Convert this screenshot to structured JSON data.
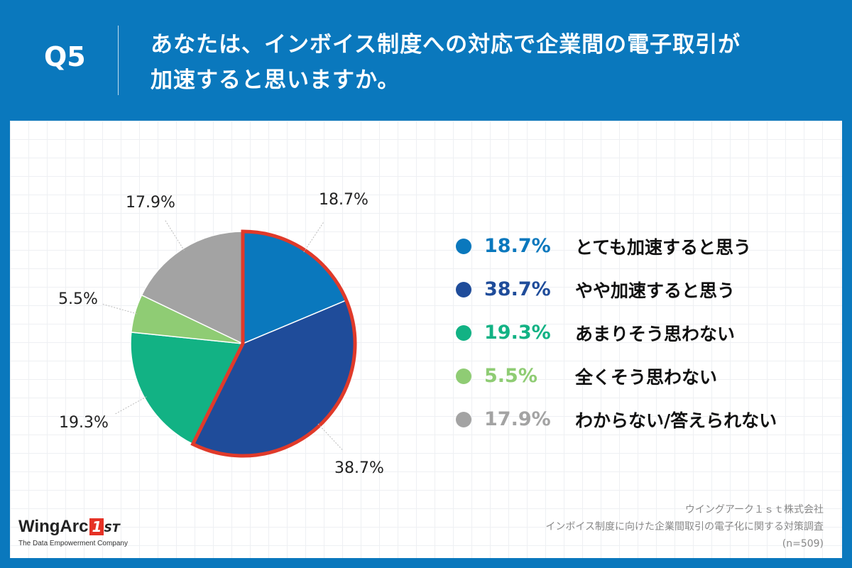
{
  "header": {
    "question_number": "Q5",
    "question_line1": "あなたは、インボイス制度への対応で企業間の電子取引が",
    "question_line2": "加速すると思いますか。"
  },
  "colors": {
    "header_bg": "#0a78bd",
    "highlight_border": "#e03a2a"
  },
  "chart_data": {
    "type": "pie",
    "title": "あなたは、インボイス制度への対応で企業間の電子取引が加速すると思いますか。",
    "start_angle": "12 o'clock",
    "direction": "clockwise",
    "highlighted_group": [
      "とても加速すると思う",
      "やや加速すると思う"
    ],
    "slices": [
      {
        "label": "とても加速すると思う",
        "value": 18.7,
        "display": "18.7%",
        "color": "#0a78bd"
      },
      {
        "label": "やや加速すると思う",
        "value": 38.7,
        "display": "38.7%",
        "color": "#1f4c9a"
      },
      {
        "label": "あまりそう思わない",
        "value": 19.3,
        "display": "19.3%",
        "color": "#12b284"
      },
      {
        "label": "全くそう思わない",
        "value": 5.5,
        "display": "5.5%",
        "color": "#8fcc74"
      },
      {
        "label": "わからない/答えられない",
        "value": 17.9,
        "display": "17.9%",
        "color": "#a3a3a3"
      }
    ]
  },
  "legend": [
    {
      "pct": "18.7%",
      "text": "とても加速すると思う",
      "color": "#0a78bd"
    },
    {
      "pct": "38.7%",
      "text": "やや加速すると思う",
      "color": "#1f4c9a"
    },
    {
      "pct": "19.3%",
      "text": "あまりそう思わない",
      "color": "#12b284"
    },
    {
      "pct": "5.5%",
      "text": "全くそう思わない",
      "color": "#8fcc74"
    },
    {
      "pct": "17.9%",
      "text": "わからない/答えられない",
      "color": "#a3a3a3"
    }
  ],
  "logo": {
    "name": "WingArc",
    "badge": "1",
    "suffix": "ST",
    "tagline": "The Data Empowerment Company"
  },
  "source": {
    "company": "ウイングアーク１ｓｔ株式会社",
    "survey": "インボイス制度に向けた企業間取引の電子化に関する対策調査",
    "sample": "(n=509)"
  }
}
